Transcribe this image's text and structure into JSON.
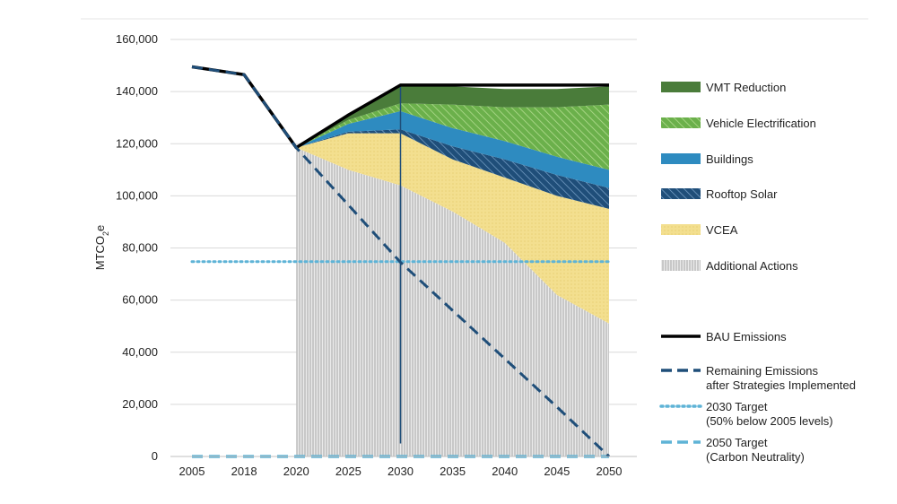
{
  "chart_data": {
    "type": "area",
    "title": "",
    "xlabel": "",
    "ylabel": "MTCO2e",
    "ylim": [
      0,
      160000
    ],
    "yticks": [
      0,
      20000,
      40000,
      60000,
      80000,
      100000,
      120000,
      140000,
      160000
    ],
    "ytick_labels": [
      "0",
      "20,000",
      "40,000",
      "60,000",
      "80,000",
      "100,000",
      "120,000",
      "140,000",
      "160,000"
    ],
    "categories": [
      "2005",
      "2018",
      "2020",
      "2025",
      "2030",
      "2035",
      "2040",
      "2045",
      "2050"
    ],
    "grid": true,
    "vertical_marker": "2030",
    "stacked_series": [
      {
        "name": "Additional Actions",
        "color": "#b8b8b8",
        "values": [
          null,
          null,
          118500,
          110000,
          104000,
          94000,
          82000,
          62000,
          51000
        ]
      },
      {
        "name": "VCEA",
        "color": "#f0dc8a",
        "values": [
          null,
          null,
          0,
          14000,
          20000,
          20000,
          25000,
          38000,
          44000
        ]
      },
      {
        "name": "Rooftop Solar",
        "color": "#1f4e79",
        "values": [
          null,
          null,
          0,
          600,
          1500,
          5000,
          7000,
          8000,
          8000
        ]
      },
      {
        "name": "Buildings",
        "color": "#2e8bc0",
        "values": [
          null,
          null,
          0,
          3000,
          7000,
          7000,
          7000,
          7000,
          7000
        ]
      },
      {
        "name": "Vehicle Electrification",
        "color": "#7cbf5a",
        "values": [
          null,
          null,
          0,
          1500,
          3000,
          9000,
          13000,
          19000,
          25000
        ]
      },
      {
        "name": "VMT Reduction",
        "color": "#4a7c3a",
        "values": [
          null,
          null,
          0,
          2500,
          7000,
          7000,
          7000,
          7000,
          7000
        ]
      }
    ],
    "lines": [
      {
        "name": "BAU Emissions",
        "color": "#000000",
        "style": "solid",
        "values": [
          149500,
          146500,
          118500,
          131000,
          142500,
          142500,
          142500,
          142500,
          142500
        ]
      },
      {
        "name": "Remaining Emissions after Strategies Implemented",
        "color": "#1f4e79",
        "style": "dashed",
        "values": [
          149500,
          146500,
          118500,
          96500,
          74500,
          56000,
          37500,
          19000,
          0
        ]
      },
      {
        "name": "2030 Target (50% below 2005 levels)",
        "color": "#5eb3d6",
        "style": "dotted",
        "values": [
          74750,
          74750,
          74750,
          74750,
          74750,
          74750,
          74750,
          74750,
          74750
        ]
      },
      {
        "name": "2050 Target (Carbon Neutrality)",
        "color": "#5eb3d6",
        "style": "dashed",
        "values": [
          0,
          0,
          0,
          0,
          0,
          0,
          0,
          0,
          0
        ]
      }
    ],
    "legend": [
      {
        "label": "VMT Reduction",
        "kind": "area",
        "series": "VMT Reduction",
        "color": "#4a7c3a"
      },
      {
        "label": "Vehicle Electrification",
        "kind": "area",
        "series": "Vehicle Electrification",
        "color": "#7cbf5a"
      },
      {
        "label": "Buildings",
        "kind": "area",
        "series": "Buildings",
        "color": "#2e8bc0"
      },
      {
        "label": "Rooftop Solar",
        "kind": "area",
        "series": "Rooftop Solar",
        "color": "#1f4e79"
      },
      {
        "label": "VCEA",
        "kind": "area",
        "series": "VCEA",
        "color": "#f0dc8a"
      },
      {
        "label": "Additional Actions",
        "kind": "area",
        "series": "Additional Actions",
        "color": "#b8b8b8"
      },
      {
        "label": "",
        "kind": "gap"
      },
      {
        "label": "BAU Emissions",
        "kind": "line",
        "series": "BAU Emissions",
        "color": "#000000",
        "style": "solid"
      },
      {
        "label": "Remaining Emissions after Strategies Implemented",
        "kind": "line",
        "series": "Remaining Emissions after Strategies Implemented",
        "color": "#1f4e79",
        "style": "dashed"
      },
      {
        "label": "2030 Target (50% below 2005 levels)",
        "kind": "line",
        "series": "2030 Target (50% below 2005 levels)",
        "color": "#5eb3d6",
        "style": "dotted"
      },
      {
        "label": "2050 Target (Carbon Neutrality)",
        "kind": "line",
        "series": "2050 Target (Carbon Neutrality)",
        "color": "#5eb3d6",
        "style": "dashed"
      }
    ]
  }
}
